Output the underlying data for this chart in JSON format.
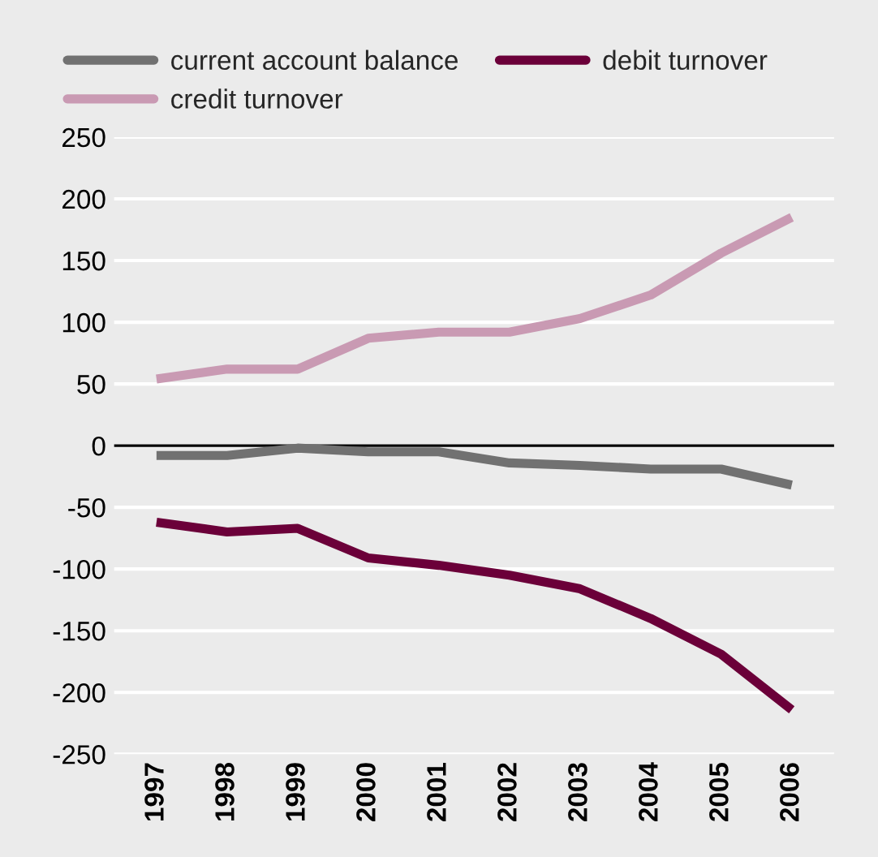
{
  "chart_data": {
    "type": "line",
    "categories": [
      "1997",
      "1998",
      "1999",
      "2000",
      "2001",
      "2002",
      "2003",
      "2004",
      "2005",
      "2006"
    ],
    "series": [
      {
        "name": "current account balance",
        "color": "#717171",
        "values": [
          -8,
          -8,
          -2,
          -5,
          -5,
          -14,
          -16,
          -19,
          -19,
          -32
        ]
      },
      {
        "name": "credit turnover",
        "color": "#c99ab3",
        "values": [
          54,
          62,
          62,
          87,
          92,
          92,
          103,
          122,
          156,
          185
        ]
      },
      {
        "name": "debit turnover",
        "color": "#6b0039",
        "values": [
          -62,
          -70,
          -67,
          -91,
          -97,
          -105,
          -116,
          -140,
          -169,
          -214
        ]
      }
    ],
    "ylim": [
      -250,
      250
    ],
    "yticks": [
      -250,
      -200,
      -150,
      -100,
      -50,
      0,
      50,
      100,
      150,
      200,
      250
    ],
    "grid": "y",
    "legend": "top left",
    "marker": "none",
    "line_style": "solid",
    "ref_lines": [
      {
        "axis": "y",
        "value": 0,
        "color": "#000000"
      }
    ]
  }
}
